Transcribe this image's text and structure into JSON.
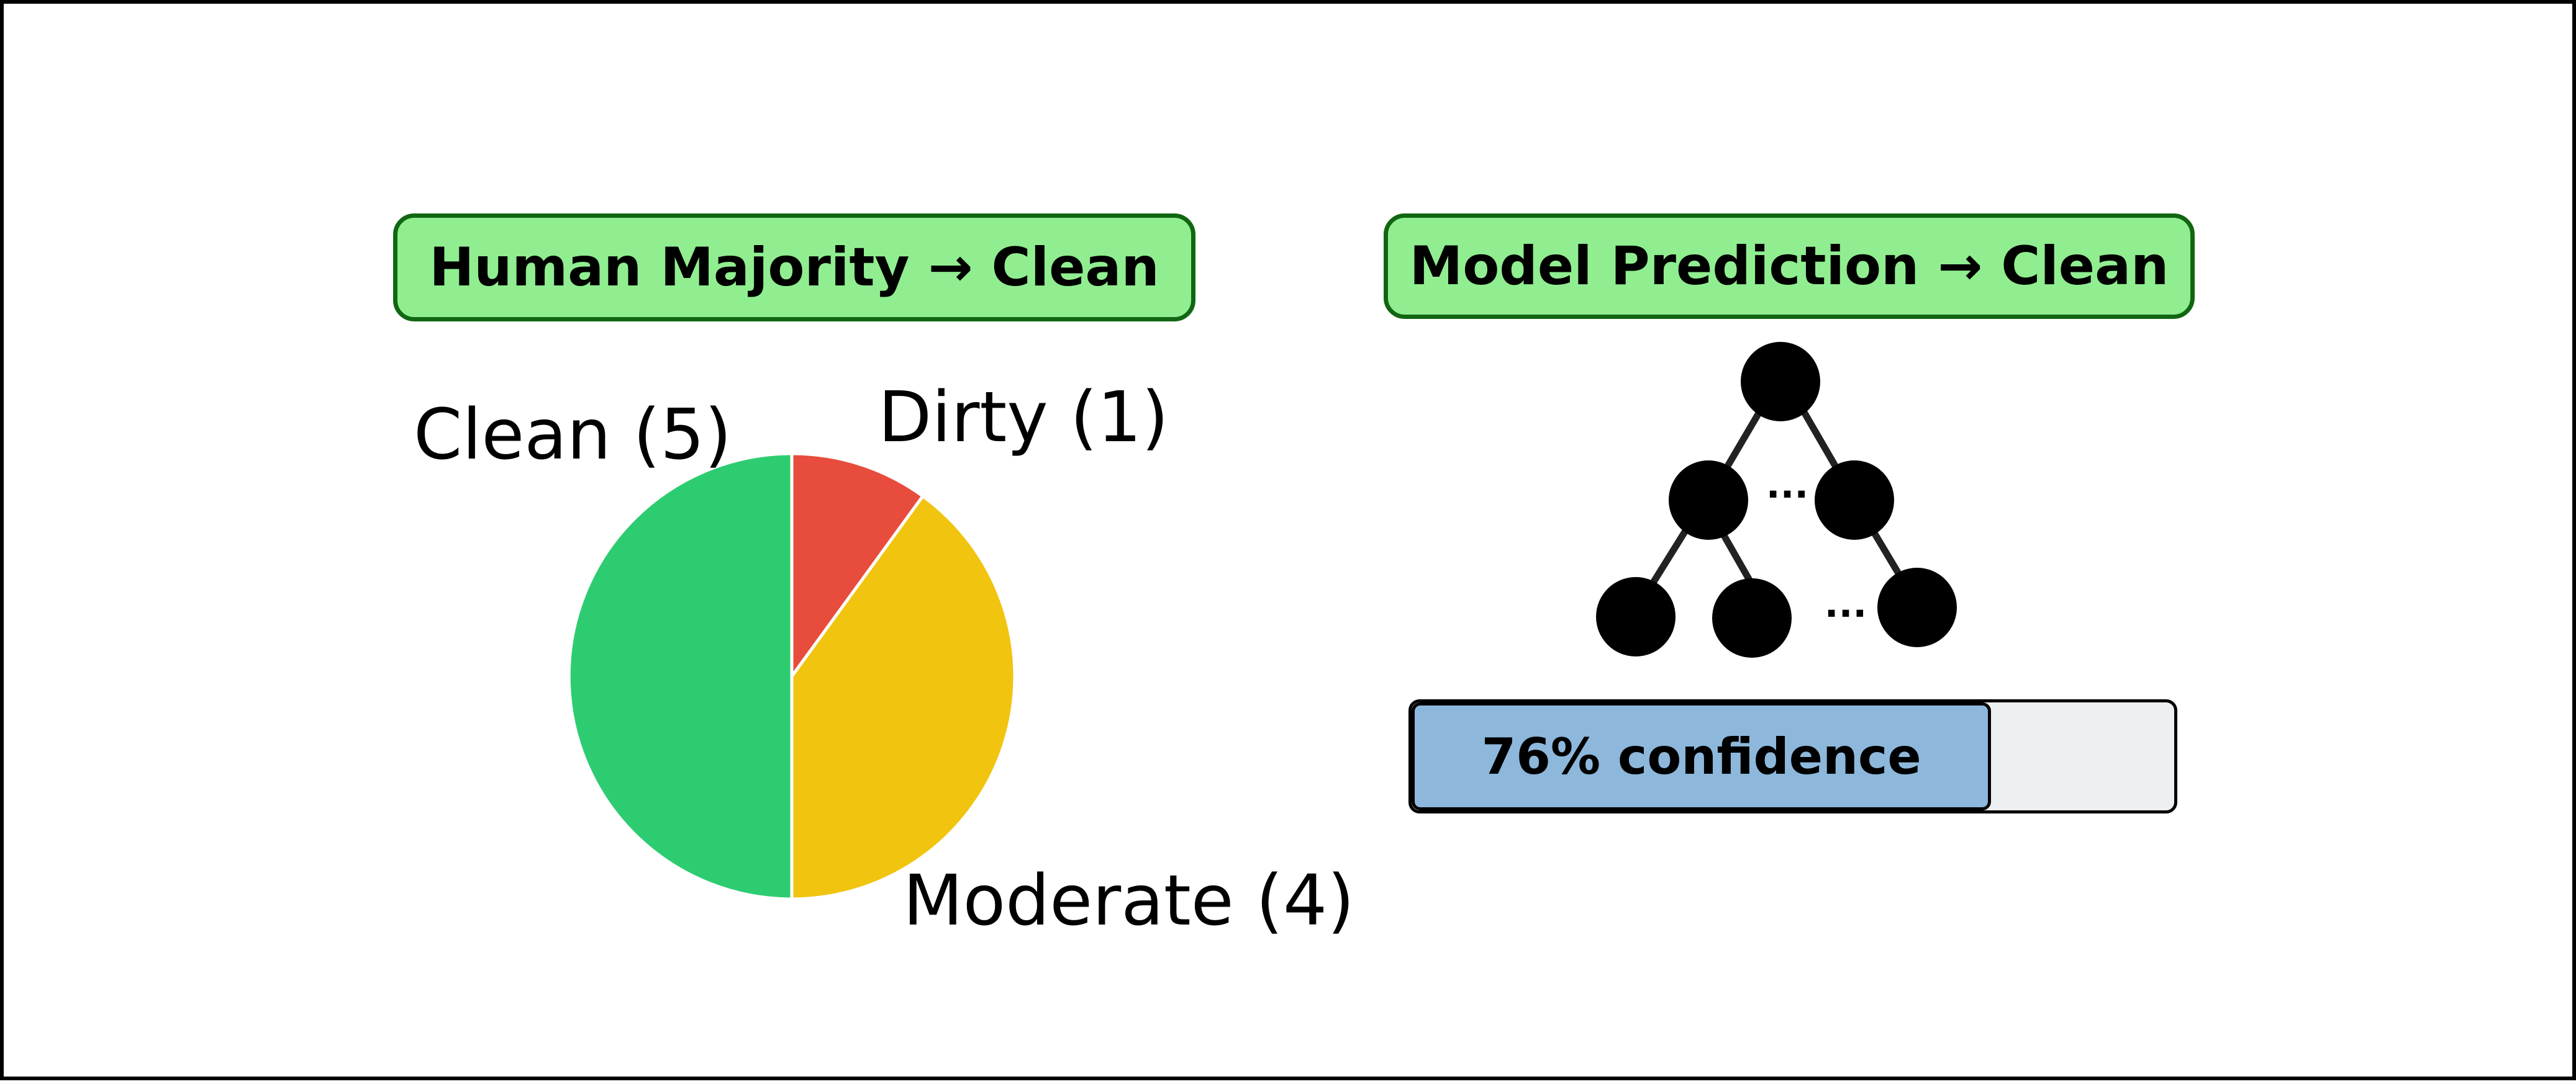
{
  "left_panel": {
    "title": "Human Majority → Clean"
  },
  "right_panel": {
    "title": "Model Prediction → Clean",
    "confidence": {
      "label": "76% confidence",
      "value": 0.76
    },
    "tree_ellipses": [
      "...",
      "..."
    ],
    "tree_icon": "decision-tree-icon"
  },
  "chart_data": {
    "type": "pie",
    "title": "",
    "slices": [
      {
        "label": "Dirty (1)",
        "category": "Dirty",
        "value": 1,
        "color": "#e74c3c"
      },
      {
        "label": "Moderate (4)",
        "category": "Moderate",
        "value": 4,
        "color": "#f1c40f"
      },
      {
        "label": "Clean (5)",
        "category": "Clean",
        "value": 5,
        "color": "#2ecc71"
      }
    ],
    "start": "12 o'clock",
    "direction": "clockwise"
  },
  "colors": {
    "title_fill": "#90ee90",
    "title_border": "#116611",
    "bar_fill": "#8db8dc",
    "bar_track": "#ecf0f1",
    "tree_node": "#000000",
    "tree_edge": "#222222"
  }
}
